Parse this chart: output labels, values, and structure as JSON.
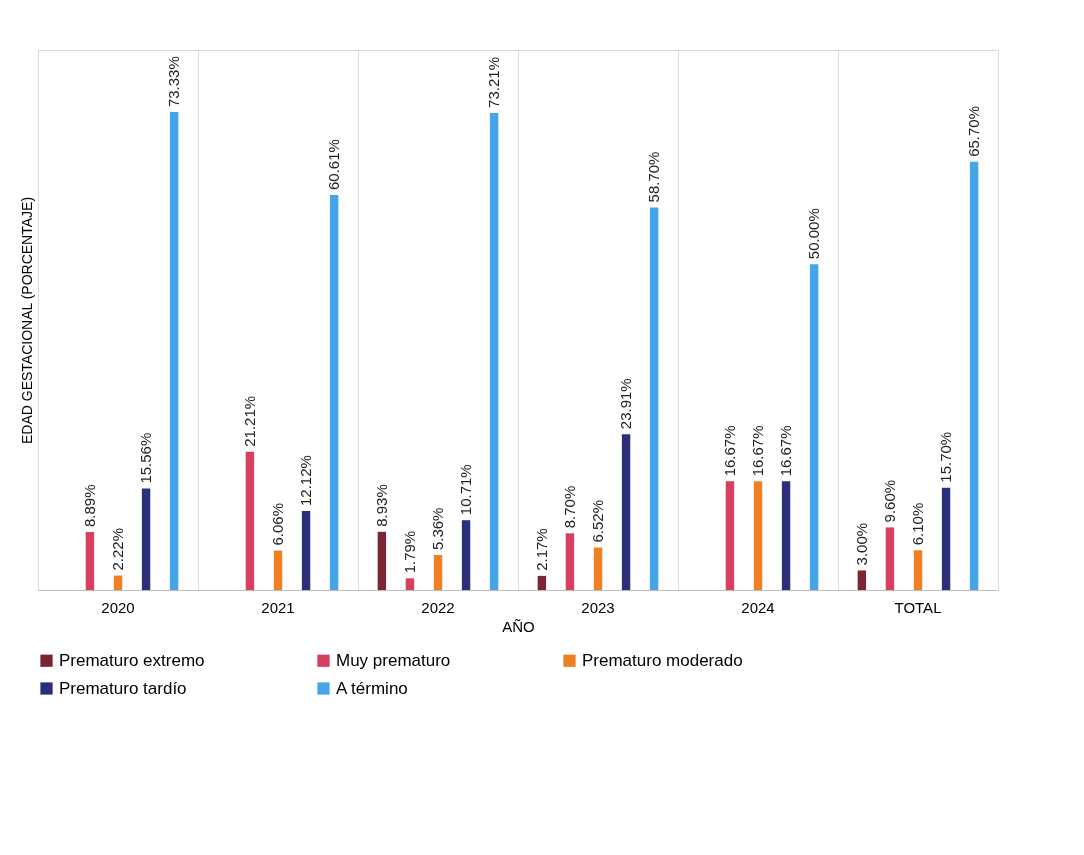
{
  "chart_data": {
    "type": "bar",
    "xlabel": "AÑO",
    "ylabel": "EDAD GESTACIONAL (PORCENTAJE)",
    "categories": [
      "2020",
      "2021",
      "2022",
      "2023",
      "2024",
      "TOTAL"
    ],
    "series": [
      {
        "name": "Prematuro extremo",
        "color": "#7b2532",
        "values": [
          null,
          null,
          8.93,
          2.17,
          null,
          3.0
        ],
        "value_labels": [
          null,
          null,
          "8.93%",
          "2.17%",
          null,
          "3.00%"
        ]
      },
      {
        "name": "Muy prematuro",
        "color": "#d63f5f",
        "values": [
          8.89,
          21.21,
          1.79,
          8.7,
          16.67,
          9.6
        ],
        "value_labels": [
          "8.89%",
          "21.21%",
          "1.79%",
          "8.70%",
          "16.67%",
          "9.60%"
        ]
      },
      {
        "name": "Prematuro moderado",
        "color": "#ee7f22",
        "values": [
          2.22,
          6.06,
          5.36,
          6.52,
          16.67,
          6.1
        ],
        "value_labels": [
          "2.22%",
          "6.06%",
          "5.36%",
          "6.52%",
          "16.67%",
          "6.10%"
        ]
      },
      {
        "name": "Prematuro tardío",
        "color": "#2b2e7a",
        "values": [
          15.56,
          12.12,
          10.71,
          23.91,
          16.67,
          15.7
        ],
        "value_labels": [
          "15.56%",
          "12.12%",
          "10.71%",
          "23.91%",
          "16.67%",
          "15.70%"
        ]
      },
      {
        "name": "A término",
        "color": "#45a5ea",
        "values": [
          73.33,
          60.61,
          73.21,
          58.7,
          50.0,
          65.7
        ],
        "value_labels": [
          "73.33%",
          "60.61%",
          "73.21%",
          "58.70%",
          "50.00%",
          "65.70%"
        ]
      }
    ],
    "grid": "x",
    "legend": "bottom",
    "tick_labels": "x"
  }
}
